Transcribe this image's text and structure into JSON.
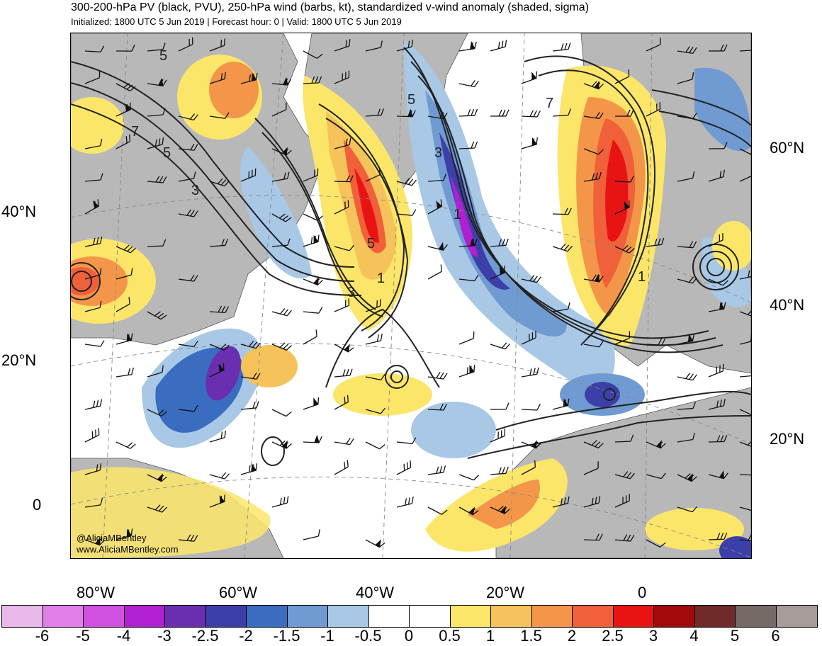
{
  "header": {
    "title": "300-200-hPa PV (black, PVU), 250-hPa wind (barbs, kt), standardized v-wind anomaly (shaded, sigma)",
    "subtitle": "Initialized: 1800 UTC 5 Jun 2019 | Forecast hour: 0 | Valid: 1800 UTC 5 Jun 2019"
  },
  "credits": {
    "twitter": "@AliciaMBentley",
    "website": "www.AliciaMBentley.com"
  },
  "axes": {
    "lat_left": [
      "40°N",
      "20°N",
      "0"
    ],
    "lat_right": [
      "60°N",
      "40°N",
      "20°N"
    ],
    "lon_bottom": [
      "80°W",
      "60°W",
      "40°W",
      "20°W",
      "0"
    ]
  },
  "contour_labels": [
    "5",
    "7",
    "5",
    "3",
    "5",
    "3",
    "1",
    "5",
    "1",
    "3",
    "7",
    "1"
  ],
  "colorbar": {
    "labels": [
      "-6",
      "-5",
      "-4",
      "-3",
      "-2.5",
      "-2",
      "-1.5",
      "-1",
      "-0.5",
      "0",
      "0.5",
      "1",
      "1.5",
      "2",
      "2.5",
      "3",
      "4",
      "5",
      "6"
    ],
    "colors": [
      "#e8b8e8",
      "#e080e8",
      "#d050e0",
      "#b020d0",
      "#6a2fb0",
      "#3d3fa8",
      "#3a6cc0",
      "#6f9ad2",
      "#a8c8e6",
      "#ffffff",
      "#ffffff",
      "#fbe66a",
      "#f6c25a",
      "#f4964a",
      "#f0603a",
      "#e81414",
      "#a00a0a",
      "#702a2a",
      "#766a66",
      "#a89c9a"
    ]
  }
}
